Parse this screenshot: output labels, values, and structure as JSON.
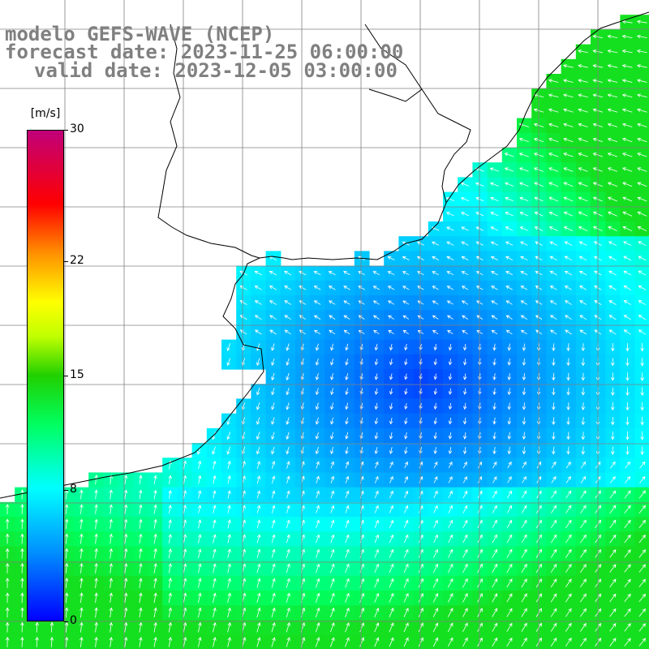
{
  "title": {
    "line1": "modelo GEFS-WAVE (NCEP)",
    "line2": "forecast date: 2023-11-25 06:00:00",
    "line3": "valid date: 2023-12-05 03:00:00"
  },
  "colorbar": {
    "unit": "[m/s]",
    "min": 0,
    "max": 30,
    "labels": [
      "30",
      "22",
      "15",
      "8",
      "0"
    ],
    "label_values": [
      30,
      22,
      15,
      8,
      0
    ],
    "colors": [
      "#0000ff",
      "#0080ff",
      "#00ffff",
      "#00ff00",
      "#ffff00",
      "#ff8000",
      "#ff0000",
      "#c00080"
    ]
  },
  "map": {
    "variable": "wind speed and direction",
    "land_color": "#ffffff",
    "coast_color": "#000000",
    "grid_color": "#808080"
  }
}
